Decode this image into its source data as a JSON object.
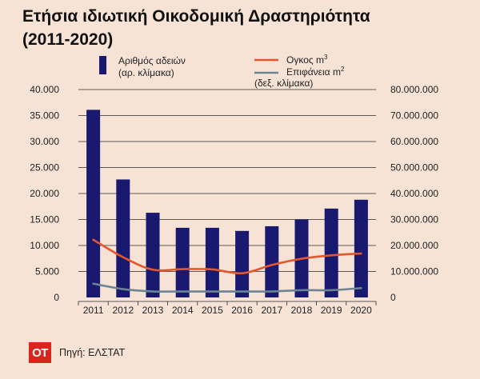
{
  "title_line1": "Ετήσια ιδιωτική Οικοδομική Δραστηριότητα",
  "title_line2": "(2011-2020)",
  "source": {
    "logo": "OT",
    "text": "Πηγή: ΕΛΣΤΑΤ"
  },
  "colors": {
    "bars": "#191970",
    "volume": "#e4572e",
    "surface": "#6b8493",
    "background": "#f6e3d6",
    "logo": "#d9261c"
  },
  "chart_data": {
    "type": "bar",
    "categories": [
      "2011",
      "2012",
      "2013",
      "2014",
      "2015",
      "2016",
      "2017",
      "2018",
      "2019",
      "2020"
    ],
    "series": [
      {
        "name": "Αριθμός αδειών",
        "type": "bar",
        "axis": "left",
        "values": [
          36100,
          22700,
          16300,
          13400,
          13400,
          12800,
          13700,
          15000,
          17100,
          18800
        ]
      },
      {
        "name": "Ογκος m3",
        "type": "line",
        "axis": "right",
        "values": [
          22200000,
          15500000,
          10700000,
          10900000,
          10800000,
          9300000,
          12500000,
          14900000,
          16200000,
          16900000
        ]
      },
      {
        "name": "Επιφάνεια m2",
        "type": "line",
        "axis": "right",
        "values": [
          5300000,
          3200000,
          2300000,
          2300000,
          2300000,
          2300000,
          2300000,
          2800000,
          2800000,
          3600000
        ]
      }
    ],
    "left_axis": {
      "ticks": [
        "0",
        "5.000",
        "10.000",
        "15.000",
        "20.000",
        "25.000",
        "30.000",
        "35.000",
        "40.000"
      ],
      "ylim": [
        0,
        40000
      ]
    },
    "right_axis": {
      "ticks": [
        "0",
        "10.000.000",
        "20.000.000",
        "30.000.000",
        "40.000.000",
        "50.000.000",
        "60.000.000",
        "70.000.000",
        "80.000.000"
      ],
      "ylim": [
        0,
        80000000
      ]
    },
    "legend": [
      {
        "line1": "Αριθμός αδειών",
        "line2": "(αρ. κλίμακα)",
        "kind": "bar"
      },
      {
        "line1": "Ογκος m",
        "sup": "3",
        "kind": "line-volume"
      },
      {
        "line1": "Επιφάνεια m",
        "sup": "2",
        "line2": "(δεξ. κλίμακα)",
        "kind": "line-surface"
      }
    ],
    "grid": true,
    "legend_position": "top"
  }
}
